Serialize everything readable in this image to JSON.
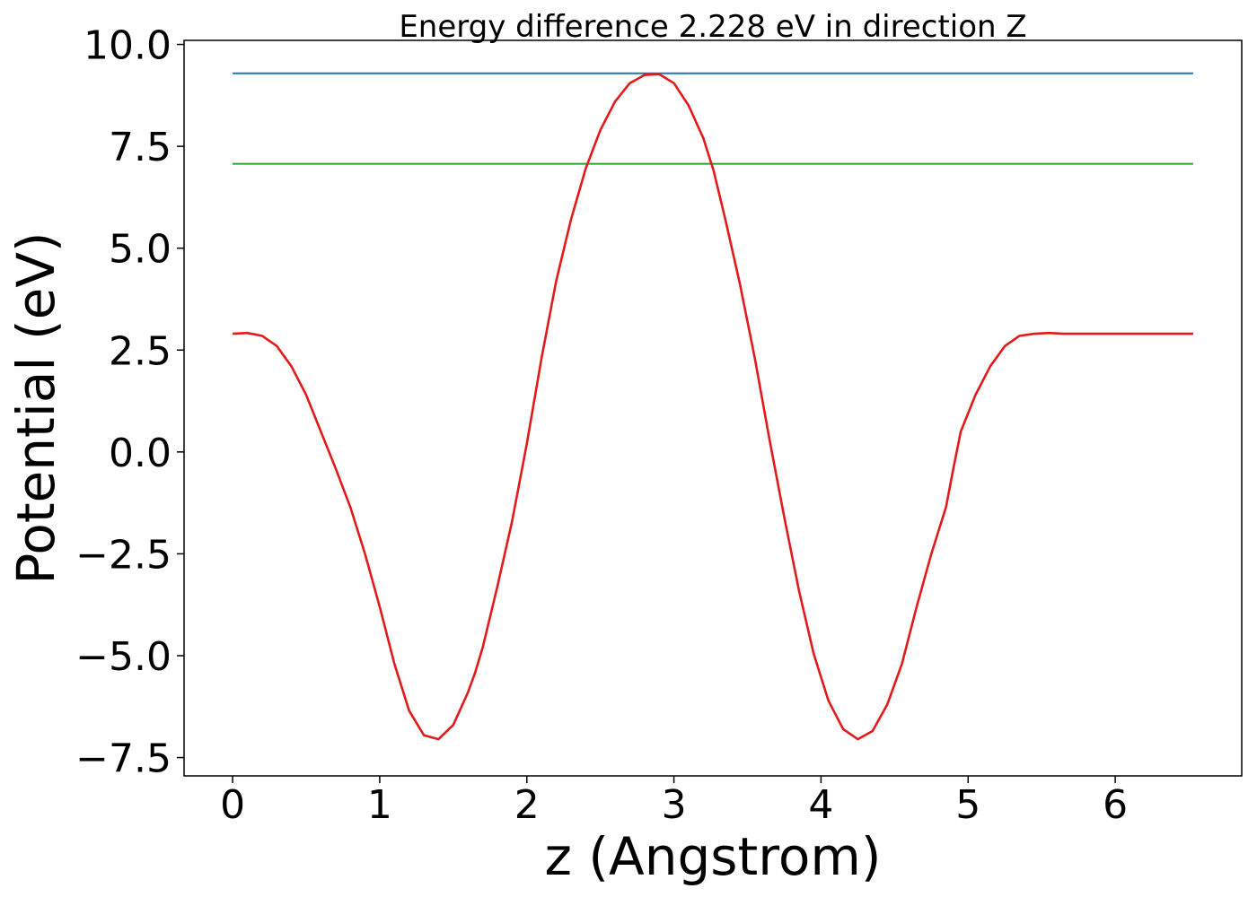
{
  "chart_data": {
    "type": "line",
    "title": "Energy difference 2.228 eV in direction Z",
    "xlabel": "z (Angstrom)",
    "ylabel": "Potential (eV)",
    "xlim": [
      -0.33,
      6.86
    ],
    "ylim": [
      -7.95,
      10.1
    ],
    "x_ticks": [
      0,
      1,
      2,
      3,
      4,
      5,
      6
    ],
    "x_tick_labels": [
      "0",
      "1",
      "2",
      "3",
      "4",
      "5",
      "6"
    ],
    "y_ticks": [
      10.0,
      7.5,
      5.0,
      2.5,
      0.0,
      -2.5,
      -5.0,
      -7.5
    ],
    "y_tick_labels": [
      "10.0",
      "7.5",
      "5.0",
      "2.5",
      "0.0",
      "−2.5",
      "−5.0",
      "−7.5"
    ],
    "grid": false,
    "series": [
      {
        "color": "#1f77b4",
        "x": [
          0,
          6.53
        ],
        "y": [
          9.29,
          9.29
        ]
      },
      {
        "color": "#2ca02c",
        "x": [
          0,
          6.53
        ],
        "y": [
          7.07,
          7.07
        ]
      },
      {
        "color": "#e31a1c",
        "x": [
          0,
          0.1,
          0.2,
          0.3,
          0.4,
          0.5,
          0.6,
          0.7,
          0.8,
          0.9,
          1.0,
          1.1,
          1.2,
          1.3,
          1.4,
          1.5,
          1.6,
          1.65,
          1.7,
          1.8,
          1.9,
          2.0,
          2.1,
          2.2,
          2.3,
          2.4,
          2.5,
          2.6,
          2.7,
          2.8,
          2.9,
          3.0,
          3.1,
          3.2,
          3.27,
          3.35,
          3.45,
          3.55,
          3.65,
          3.75,
          3.85,
          3.95,
          4.05,
          4.15,
          4.25,
          4.35,
          4.45,
          4.55,
          4.65,
          4.75,
          4.85,
          4.9,
          4.95,
          5.05,
          5.15,
          5.25,
          5.35,
          5.45,
          5.55,
          5.65,
          5.75,
          5.85,
          5.95,
          6.05,
          6.15,
          6.25,
          6.35,
          6.45,
          6.53
        ],
        "y": [
          2.9,
          2.92,
          2.85,
          2.6,
          2.1,
          1.4,
          0.5,
          -0.4,
          -1.35,
          -2.5,
          -3.8,
          -5.2,
          -6.35,
          -6.95,
          -7.05,
          -6.7,
          -5.9,
          -5.4,
          -4.8,
          -3.3,
          -1.7,
          0.2,
          2.3,
          4.2,
          5.7,
          6.95,
          7.9,
          8.6,
          9.05,
          9.25,
          9.27,
          9.05,
          8.5,
          7.7,
          6.9,
          5.7,
          4.1,
          2.3,
          0.3,
          -1.6,
          -3.4,
          -4.95,
          -6.1,
          -6.8,
          -7.05,
          -6.85,
          -6.2,
          -5.2,
          -3.8,
          -2.5,
          -1.35,
          -0.4,
          0.5,
          1.4,
          2.1,
          2.6,
          2.85,
          2.9,
          2.92,
          2.9,
          2.9,
          2.9,
          2.9,
          2.9,
          2.9,
          2.9,
          2.9,
          2.9,
          2.9
        ]
      }
    ]
  }
}
